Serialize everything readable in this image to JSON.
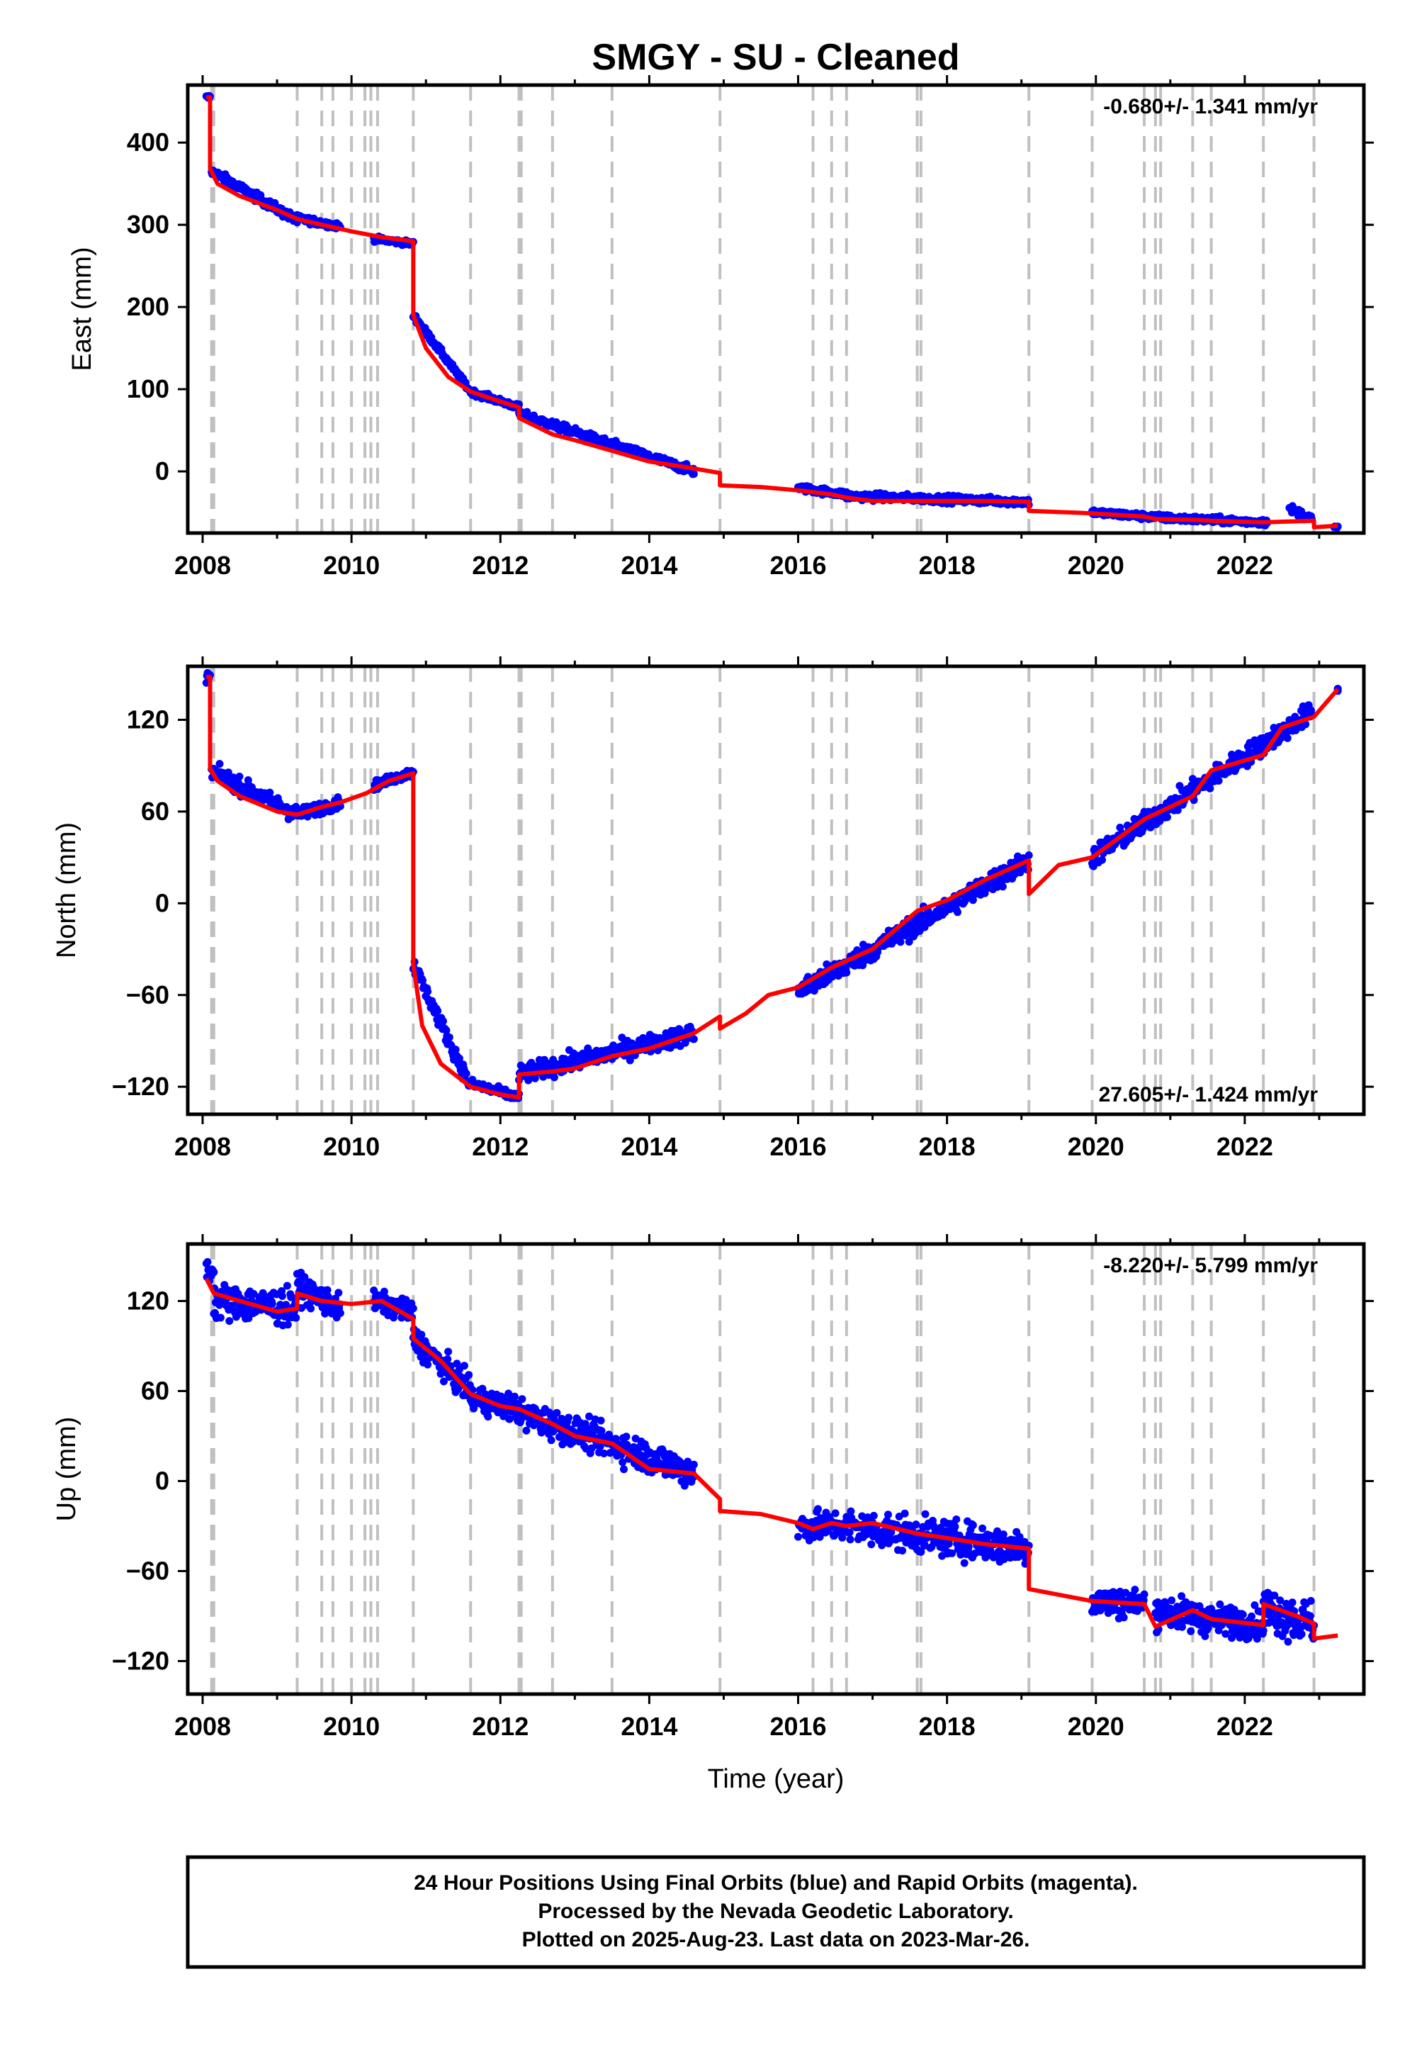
{
  "title": "SMGY  - SU - Cleaned",
  "xlabel": "Time (year)",
  "footer": {
    "line1": "24 Hour Positions Using Final Orbits (blue) and Rapid Orbits (magenta).",
    "line2": "Processed by the Nevada Geodetic Laboratory.",
    "line3": "Plotted on 2025-Aug-23. Last data on 2023-Mar-26."
  },
  "colors": {
    "final_orbits": "#0000ff",
    "model": "#ff0000",
    "offset_lines": "#c0c0c0"
  },
  "chart_data": [
    {
      "type": "scatter",
      "name": "east",
      "ylabel": "East (mm)",
      "rate": "-0.680+/- 1.341 mm/yr",
      "rate_position": "top-right",
      "xlim": [
        2007.8,
        2023.6
      ],
      "ylim": [
        -75,
        470
      ],
      "xticks": [
        2008,
        2010,
        2012,
        2014,
        2016,
        2018,
        2020,
        2022
      ],
      "yticks": [
        0,
        100,
        200,
        300,
        400
      ],
      "offsets": [
        2008.12,
        2008.15,
        2009.27,
        2009.6,
        2009.75,
        2010.0,
        2010.18,
        2010.26,
        2010.35,
        2010.83,
        2011.6,
        2012.25,
        2012.28,
        2012.7,
        2013.5,
        2014.95,
        2016.2,
        2016.45,
        2016.65,
        2017.6,
        2017.65,
        2019.1,
        2019.95,
        2020.65,
        2020.8,
        2020.87,
        2021.3,
        2021.55,
        2022.25,
        2022.93
      ],
      "model": [
        [
          2008.05,
          455
        ],
        [
          2008.1,
          455
        ],
        [
          2008.1,
          368
        ],
        [
          2008.2,
          350
        ],
        [
          2008.5,
          335
        ],
        [
          2009.0,
          318
        ],
        [
          2009.27,
          307
        ],
        [
          2009.6,
          300
        ],
        [
          2010.0,
          292
        ],
        [
          2010.4,
          285
        ],
        [
          2010.83,
          280
        ],
        [
          2010.83,
          190
        ],
        [
          2011.0,
          150
        ],
        [
          2011.3,
          115
        ],
        [
          2011.6,
          97
        ],
        [
          2012.0,
          85
        ],
        [
          2012.25,
          78
        ],
        [
          2012.25,
          65
        ],
        [
          2012.7,
          45
        ],
        [
          2013.0,
          38
        ],
        [
          2013.5,
          25
        ],
        [
          2014.0,
          12
        ],
        [
          2014.5,
          5
        ],
        [
          2014.95,
          -2
        ],
        [
          2014.95,
          -17
        ],
        [
          2015.5,
          -19
        ],
        [
          2016.0,
          -23
        ],
        [
          2016.45,
          -28
        ],
        [
          2016.65,
          -32
        ],
        [
          2017.0,
          -36
        ],
        [
          2017.6,
          -36
        ],
        [
          2018.0,
          -36
        ],
        [
          2018.5,
          -36
        ],
        [
          2019.1,
          -37
        ],
        [
          2019.1,
          -48
        ],
        [
          2019.95,
          -51
        ],
        [
          2020.65,
          -55
        ],
        [
          2020.8,
          -58
        ],
        [
          2021.3,
          -59
        ],
        [
          2021.55,
          -60
        ],
        [
          2022.25,
          -62
        ],
        [
          2022.93,
          -60
        ],
        [
          2022.93,
          -68
        ],
        [
          2023.25,
          -66
        ]
      ],
      "data_segments": [
        [
          2008.05,
          2008.1,
          455,
          455,
          6
        ],
        [
          2008.12,
          2009.27,
          365,
          305,
          11
        ],
        [
          2009.27,
          2009.85,
          308,
          298,
          8
        ],
        [
          2010.3,
          2010.83,
          283,
          277,
          6
        ],
        [
          2010.83,
          2011.6,
          190,
          97,
          8
        ],
        [
          2011.6,
          2012.25,
          97,
          78,
          7
        ],
        [
          2012.25,
          2014.6,
          70,
          0,
          10
        ],
        [
          2016.0,
          2016.65,
          -20,
          -28,
          8
        ],
        [
          2016.65,
          2019.1,
          -30,
          -37,
          9
        ],
        [
          2019.95,
          2021.0,
          -50,
          -57,
          8
        ],
        [
          2021.0,
          2022.3,
          -57,
          -62,
          8
        ],
        [
          2022.6,
          2022.9,
          -45,
          -58,
          10
        ],
        [
          2023.2,
          2023.25,
          -68,
          -68,
          3
        ]
      ]
    },
    {
      "type": "scatter",
      "name": "north",
      "ylabel": "North (mm)",
      "rate": "27.605+/- 1.424 mm/yr",
      "rate_position": "bottom-right",
      "xlim": [
        2007.8,
        2023.6
      ],
      "ylim": [
        -138,
        155
      ],
      "xticks": [
        2008,
        2010,
        2012,
        2014,
        2016,
        2018,
        2020,
        2022
      ],
      "yticks": [
        -120,
        -60,
        0,
        60,
        120
      ],
      "offsets": [
        2008.12,
        2008.15,
        2009.27,
        2009.6,
        2009.75,
        2010.0,
        2010.18,
        2010.26,
        2010.35,
        2010.83,
        2011.6,
        2012.25,
        2012.28,
        2012.7,
        2013.5,
        2014.95,
        2016.2,
        2016.45,
        2016.65,
        2017.6,
        2017.65,
        2019.1,
        2019.95,
        2020.65,
        2020.8,
        2020.87,
        2021.3,
        2021.55,
        2022.25,
        2022.93
      ],
      "model": [
        [
          2008.05,
          148
        ],
        [
          2008.1,
          148
        ],
        [
          2008.1,
          88
        ],
        [
          2008.2,
          80
        ],
        [
          2008.5,
          70
        ],
        [
          2009.0,
          60
        ],
        [
          2009.27,
          58
        ],
        [
          2009.6,
          63
        ],
        [
          2009.85,
          66
        ],
        [
          2010.2,
          72
        ],
        [
          2010.5,
          80
        ],
        [
          2010.83,
          85
        ],
        [
          2010.83,
          -40
        ],
        [
          2010.95,
          -80
        ],
        [
          2011.2,
          -105
        ],
        [
          2011.6,
          -120
        ],
        [
          2012.0,
          -125
        ],
        [
          2012.25,
          -127
        ],
        [
          2012.25,
          -112
        ],
        [
          2012.7,
          -110
        ],
        [
          2013.0,
          -108
        ],
        [
          2013.5,
          -100
        ],
        [
          2014.0,
          -95
        ],
        [
          2014.6,
          -85
        ],
        [
          2014.95,
          -74
        ],
        [
          2014.95,
          -82
        ],
        [
          2015.3,
          -72
        ],
        [
          2015.6,
          -60
        ],
        [
          2016.0,
          -55
        ],
        [
          2016.45,
          -42
        ],
        [
          2017.0,
          -30
        ],
        [
          2017.6,
          -5
        ],
        [
          2018.0,
          2
        ],
        [
          2018.5,
          15
        ],
        [
          2019.1,
          28
        ],
        [
          2019.1,
          6
        ],
        [
          2019.5,
          25
        ],
        [
          2019.95,
          30
        ],
        [
          2020.65,
          55
        ],
        [
          2021.3,
          70
        ],
        [
          2021.55,
          87
        ],
        [
          2022.25,
          97
        ],
        [
          2022.5,
          115
        ],
        [
          2022.93,
          122
        ],
        [
          2023.25,
          140
        ]
      ],
      "data_segments": [
        [
          2008.05,
          2008.1,
          148,
          148,
          6
        ],
        [
          2008.12,
          2009.27,
          86,
          58,
          11
        ],
        [
          2009.27,
          2009.85,
          58,
          66,
          8
        ],
        [
          2010.3,
          2010.83,
          77,
          86,
          6
        ],
        [
          2010.83,
          2011.6,
          -40,
          -120,
          10
        ],
        [
          2011.6,
          2012.25,
          -118,
          -127,
          6
        ],
        [
          2012.25,
          2014.6,
          -112,
          -85,
          12
        ],
        [
          2016.0,
          2019.1,
          -58,
          28,
          14
        ],
        [
          2019.95,
          2022.9,
          30,
          125,
          14
        ],
        [
          2023.25,
          2023.25,
          140,
          140,
          3
        ]
      ]
    },
    {
      "type": "scatter",
      "name": "up",
      "ylabel": "Up (mm)",
      "rate": "-8.220+/- 5.799 mm/yr",
      "rate_position": "top-right",
      "xlim": [
        2007.8,
        2023.6
      ],
      "ylim": [
        -142,
        158
      ],
      "xticks": [
        2008,
        2010,
        2012,
        2014,
        2016,
        2018,
        2020,
        2022
      ],
      "yticks": [
        -120,
        -60,
        0,
        60,
        120
      ],
      "offsets": [
        2008.12,
        2008.15,
        2009.27,
        2009.6,
        2009.75,
        2010.0,
        2010.18,
        2010.26,
        2010.35,
        2010.83,
        2011.6,
        2012.25,
        2012.28,
        2012.7,
        2013.5,
        2014.95,
        2016.2,
        2016.45,
        2016.65,
        2017.6,
        2017.65,
        2019.1,
        2019.95,
        2020.65,
        2020.8,
        2020.87,
        2021.3,
        2021.55,
        2022.25,
        2022.93
      ],
      "model": [
        [
          2008.05,
          135
        ],
        [
          2008.15,
          125
        ],
        [
          2008.5,
          120
        ],
        [
          2009.0,
          113
        ],
        [
          2009.27,
          115
        ],
        [
          2009.27,
          125
        ],
        [
          2009.6,
          120
        ],
        [
          2010.0,
          118
        ],
        [
          2010.4,
          120
        ],
        [
          2010.83,
          108
        ],
        [
          2010.83,
          95
        ],
        [
          2011.2,
          80
        ],
        [
          2011.6,
          58
        ],
        [
          2012.0,
          50
        ],
        [
          2012.25,
          48
        ],
        [
          2012.7,
          38
        ],
        [
          2013.0,
          30
        ],
        [
          2013.5,
          25
        ],
        [
          2014.0,
          8
        ],
        [
          2014.6,
          5
        ],
        [
          2014.95,
          -12
        ],
        [
          2014.95,
          -20
        ],
        [
          2015.5,
          -22
        ],
        [
          2016.0,
          -28
        ],
        [
          2016.2,
          -32
        ],
        [
          2016.45,
          -28
        ],
        [
          2016.65,
          -30
        ],
        [
          2017.0,
          -28
        ],
        [
          2017.6,
          -35
        ],
        [
          2018.0,
          -38
        ],
        [
          2018.5,
          -42
        ],
        [
          2019.1,
          -45
        ],
        [
          2019.1,
          -72
        ],
        [
          2019.95,
          -80
        ],
        [
          2020.65,
          -82
        ],
        [
          2020.8,
          -97
        ],
        [
          2021.3,
          -86
        ],
        [
          2021.55,
          -92
        ],
        [
          2022.25,
          -96
        ],
        [
          2022.25,
          -82
        ],
        [
          2022.7,
          -90
        ],
        [
          2022.93,
          -95
        ],
        [
          2022.93,
          -105
        ],
        [
          2023.25,
          -103
        ]
      ],
      "data_segments": [
        [
          2008.05,
          2008.15,
          140,
          140,
          18
        ],
        [
          2008.15,
          2009.27,
          120,
          115,
          24
        ],
        [
          2009.27,
          2009.85,
          130,
          115,
          18
        ],
        [
          2010.3,
          2010.83,
          120,
          112,
          14
        ],
        [
          2010.83,
          2011.6,
          95,
          60,
          18
        ],
        [
          2011.6,
          2012.25,
          55,
          48,
          18
        ],
        [
          2012.25,
          2013.5,
          45,
          25,
          20
        ],
        [
          2013.5,
          2014.6,
          25,
          5,
          22
        ],
        [
          2016.0,
          2016.65,
          -30,
          -30,
          20
        ],
        [
          2016.65,
          2019.1,
          -30,
          -45,
          24
        ],
        [
          2019.95,
          2020.65,
          -80,
          -82,
          20
        ],
        [
          2020.8,
          2021.55,
          -86,
          -92,
          22
        ],
        [
          2021.55,
          2022.25,
          -92,
          -95,
          20
        ],
        [
          2022.25,
          2022.93,
          -85,
          -95,
          30
        ]
      ]
    }
  ]
}
